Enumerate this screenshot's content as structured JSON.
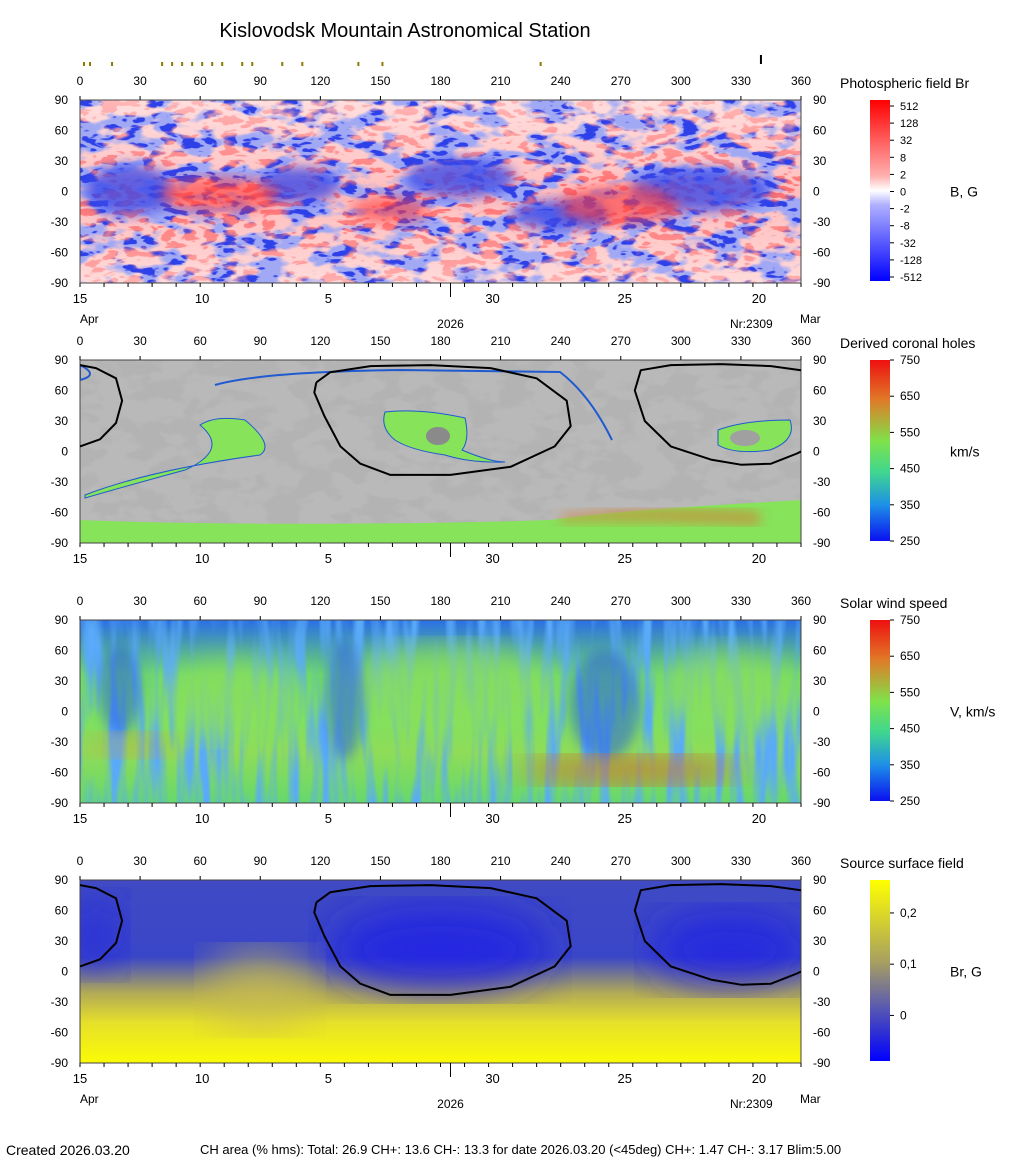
{
  "title": "Kislovodsk Mountain Astronomical Station",
  "longitude_ticks": [
    0,
    30,
    60,
    90,
    120,
    150,
    180,
    210,
    240,
    270,
    300,
    330,
    360
  ],
  "latitude_ticks": [
    90,
    60,
    30,
    0,
    -30,
    -60,
    -90
  ],
  "date_ticks": [
    {
      "label": "15",
      "lon": 0
    },
    {
      "label": "10",
      "lon": 61
    },
    {
      "label": "5",
      "lon": 124
    },
    {
      "label": "30",
      "lon": 206
    },
    {
      "label": "25",
      "lon": 272
    },
    {
      "label": "20",
      "lon": 339
    }
  ],
  "date_labels": {
    "left_month": "Apr",
    "right_month": "Mar",
    "year": "2026",
    "rotation": "Nr:2309"
  },
  "top_markers_lon": [
    2,
    5,
    16,
    41,
    46,
    51,
    56,
    61,
    66,
    71,
    81,
    86,
    101,
    111,
    139,
    151,
    230
  ],
  "current_marker_lon": 340,
  "panels": [
    {
      "id": "photo",
      "title": "Photospheric field Br",
      "unit": "B, G",
      "colorbar": [
        "512",
        "128",
        "32",
        "8",
        "2",
        "0",
        "-2",
        "-8",
        "-32",
        "-128",
        "-512"
      ],
      "show_dates": true
    },
    {
      "id": "holes",
      "title": "Derived coronal holes",
      "unit": "km/s",
      "colorbar": [
        "750",
        "650",
        "550",
        "450",
        "350",
        "250"
      ],
      "show_dates": true
    },
    {
      "id": "wind",
      "title": "Solar wind speed",
      "unit": "V, km/s",
      "colorbar": [
        "750",
        "650",
        "550",
        "450",
        "350",
        "250"
      ],
      "show_dates": true
    },
    {
      "id": "source",
      "title": "Source surface field",
      "unit": "Br, G",
      "colorbar": [
        "0,2",
        "0,1",
        "0"
      ],
      "show_dates": true
    }
  ],
  "chart_data": [
    {
      "type": "heatmap",
      "title": "Photospheric field Br",
      "xlim": [
        0,
        360
      ],
      "ylim": [
        -90,
        90
      ],
      "colorbar_label": "B, G",
      "colorbar_ticks": [
        512,
        128,
        32,
        8,
        2,
        0,
        -2,
        -8,
        -32,
        -128,
        -512
      ]
    },
    {
      "type": "heatmap",
      "title": "Derived coronal holes",
      "xlim": [
        0,
        360
      ],
      "ylim": [
        -90,
        90
      ],
      "colorbar_label": "km/s",
      "colorbar_ticks": [
        750,
        650,
        550,
        450,
        350,
        250
      ]
    },
    {
      "type": "heatmap",
      "title": "Solar wind speed",
      "xlim": [
        0,
        360
      ],
      "ylim": [
        -90,
        90
      ],
      "colorbar_label": "V, km/s",
      "colorbar_ticks": [
        750,
        650,
        550,
        450,
        350,
        250
      ]
    },
    {
      "type": "heatmap",
      "title": "Source surface field",
      "xlim": [
        0,
        360
      ],
      "ylim": [
        -90,
        90
      ],
      "colorbar_label": "Br, G",
      "colorbar_ticks": [
        0.2,
        0.1,
        0
      ]
    }
  ],
  "neutral_line": [
    [
      [
        0,
        5
      ],
      [
        10,
        12
      ],
      [
        18,
        28
      ],
      [
        21,
        50
      ],
      [
        18,
        72
      ],
      [
        8,
        82
      ],
      [
        0,
        85
      ]
    ],
    [
      [
        360,
        80
      ],
      [
        345,
        84
      ],
      [
        320,
        86
      ],
      [
        295,
        85
      ],
      [
        280,
        80
      ],
      [
        277,
        60
      ],
      [
        282,
        30
      ],
      [
        295,
        5
      ],
      [
        315,
        -8
      ],
      [
        330,
        -13
      ],
      [
        345,
        -12
      ],
      [
        358,
        -2
      ],
      [
        360,
        0
      ]
    ],
    [
      [
        118,
        68
      ],
      [
        125,
        78
      ],
      [
        145,
        84
      ],
      [
        175,
        85
      ],
      [
        205,
        82
      ],
      [
        228,
        72
      ],
      [
        243,
        50
      ],
      [
        245,
        25
      ],
      [
        237,
        5
      ],
      [
        215,
        -15
      ],
      [
        185,
        -23
      ],
      [
        155,
        -23
      ],
      [
        140,
        -12
      ],
      [
        130,
        5
      ],
      [
        122,
        35
      ],
      [
        117,
        58
      ],
      [
        118,
        68
      ]
    ]
  ],
  "footer": {
    "created": "Created  2026.03.20",
    "stats": "CH area (% hms): Total: 26.9 CH+: 13.6   CH-: 13.3 for date 2026.03.20 (<45deg) CH+: 1.47    CH-: 3.17 Blim:5.00"
  }
}
